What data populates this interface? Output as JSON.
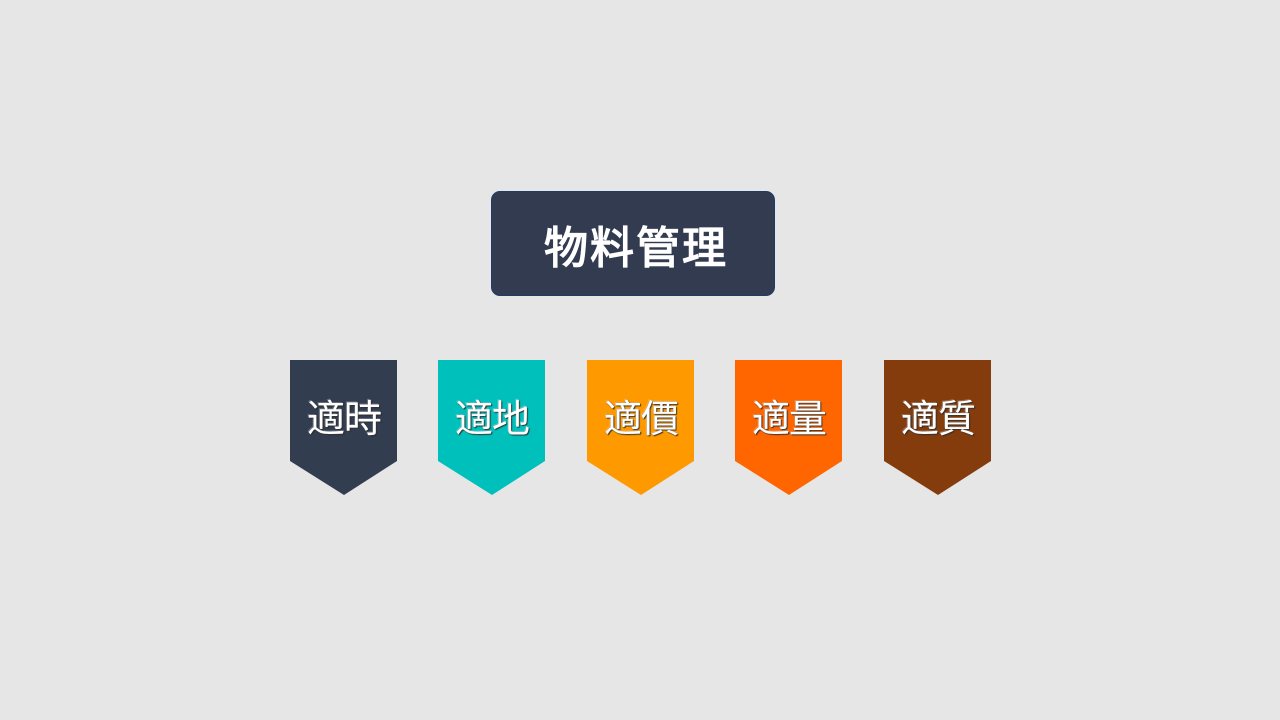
{
  "title": {
    "text": "物料管理",
    "color": "#323b4f"
  },
  "tags": [
    {
      "label": "適時",
      "color": "#333d50"
    },
    {
      "label": "適地",
      "color": "#00c0bc"
    },
    {
      "label": "適價",
      "color": "#ff9900"
    },
    {
      "label": "適量",
      "color": "#ff6600"
    },
    {
      "label": "適質",
      "color": "#843c0c"
    }
  ]
}
